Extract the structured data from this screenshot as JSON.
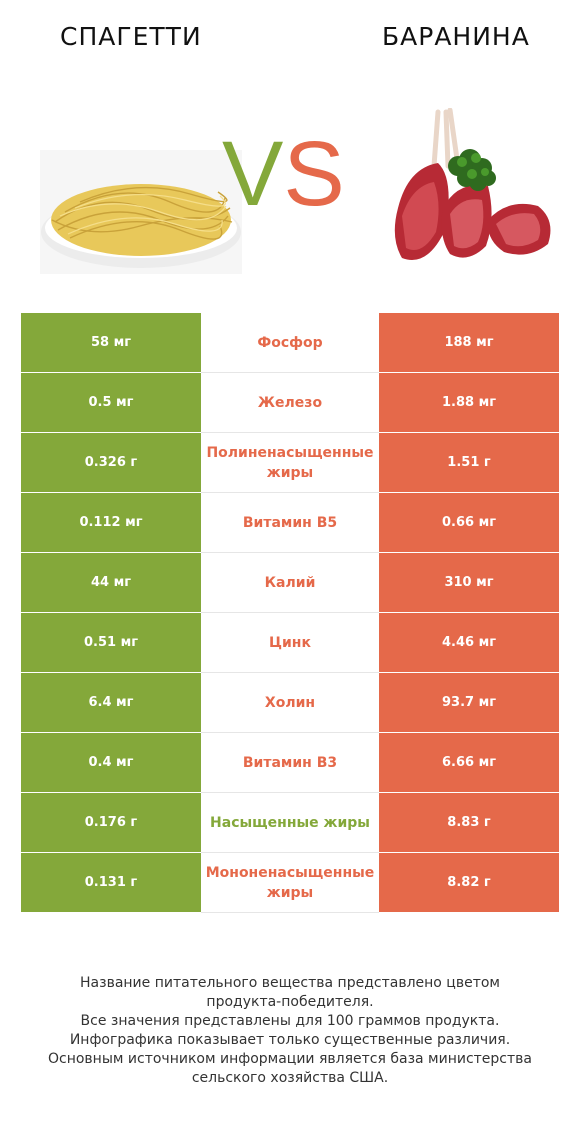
{
  "header": {
    "left_title": "СПАГЕТТИ",
    "right_title": "БАРАНИНА",
    "vs_v": "V",
    "vs_s": "S"
  },
  "colors": {
    "left_accent": "#84a83a",
    "right_accent": "#e5694a"
  },
  "rows": [
    {
      "left": "58 мг",
      "name": "Фосфор",
      "right": "188 мг",
      "winner": "right"
    },
    {
      "left": "0.5 мг",
      "name": "Железо",
      "right": "1.88 мг",
      "winner": "right"
    },
    {
      "left": "0.326 г",
      "name": "Полиненасыщенные жиры",
      "right": "1.51 г",
      "winner": "right"
    },
    {
      "left": "0.112 мг",
      "name": "Витамин B5",
      "right": "0.66 мг",
      "winner": "right"
    },
    {
      "left": "44 мг",
      "name": "Калий",
      "right": "310 мг",
      "winner": "right"
    },
    {
      "left": "0.51 мг",
      "name": "Цинк",
      "right": "4.46 мг",
      "winner": "right"
    },
    {
      "left": "6.4 мг",
      "name": "Холин",
      "right": "93.7 мг",
      "winner": "right"
    },
    {
      "left": "0.4 мг",
      "name": "Витамин B3",
      "right": "6.66 мг",
      "winner": "right"
    },
    {
      "left": "0.176 г",
      "name": "Насыщенные жиры",
      "right": "8.83 г",
      "winner": "left"
    },
    {
      "left": "0.131 г",
      "name": "Мононенасыщенные жиры",
      "right": "8.82 г",
      "winner": "right"
    }
  ],
  "footer": {
    "line1": "Название питательного вещества представлено цветом",
    "line2": "продукта-победителя.",
    "line3": "Все значения представлены для 100 граммов продукта.",
    "line4": "Инфографика показывает только существенные различия.",
    "line5": "Основным источником информации является база министерства",
    "line6": "сельского хозяйства США."
  }
}
